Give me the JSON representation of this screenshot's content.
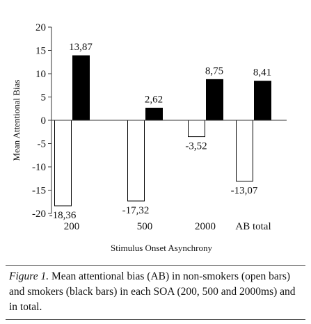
{
  "chart_data": {
    "type": "bar",
    "categories": [
      "200",
      "500",
      "2000",
      "AB total"
    ],
    "series": [
      {
        "values": [
          -18.36,
          -17.32,
          -3.52,
          -13.07
        ],
        "labels": [
          "-18,36",
          "-17,32",
          "-3,52",
          "-13,07"
        ],
        "fill": "#ffffff"
      },
      {
        "values": [
          13.87,
          2.62,
          8.75,
          8.41
        ],
        "labels": [
          "13,87",
          "2,62",
          "8,75",
          "8,41"
        ],
        "fill": "#000000"
      }
    ],
    "xlabel": "Stimulus Onset Asynchrony",
    "ylabel": "Mean Attentional Bias",
    "ylim": [
      -20,
      20
    ],
    "yticks": [
      20,
      15,
      10,
      5,
      0,
      -5,
      -10,
      -15,
      -20
    ],
    "ytick_labels": [
      "20",
      "15",
      "10",
      "5",
      "0",
      "-5",
      "-10",
      "-15",
      "-20"
    ],
    "grid": false,
    "legend": "none"
  },
  "caption": {
    "figure_label": "Figure 1.",
    "text": " Mean attentional bias (AB) in non-smokers (open bars) and smokers (black bars) in each SOA (200, 500 and 2000ms) and in total."
  }
}
